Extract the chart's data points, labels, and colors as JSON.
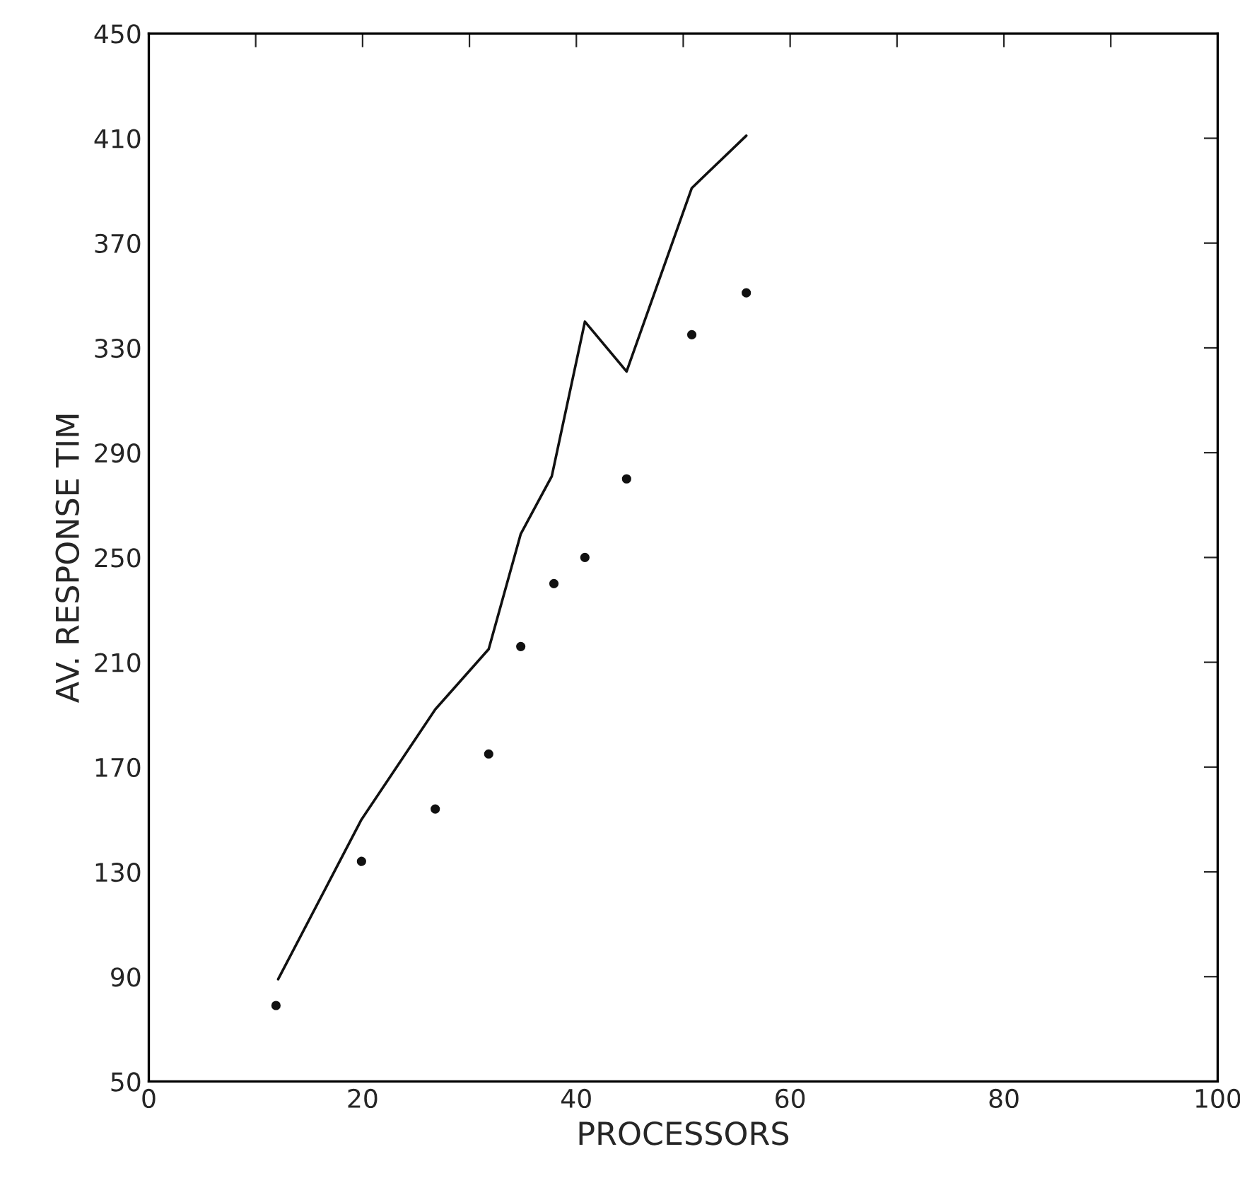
{
  "chart_data": {
    "type": "line",
    "xlabel": "PROCESSORS",
    "ylabel": "AV. RESPONSE TIM",
    "xlim": [
      0,
      100
    ],
    "ylim": [
      50,
      450
    ],
    "xticks": [
      0,
      {
        "value": 10,
        "label": null
      },
      20,
      {
        "value": 30,
        "label": null
      },
      40,
      {
        "value": 50,
        "label": null
      },
      60,
      {
        "value": 70,
        "label": null
      },
      80,
      {
        "value": 90,
        "label": null
      },
      100
    ],
    "yticks": [
      50,
      90,
      130,
      170,
      210,
      250,
      290,
      330,
      370,
      410,
      450
    ],
    "grid": false,
    "series": [
      {
        "color": "#111111",
        "marker": "none",
        "line_style": "solid",
        "x": [
          12.1,
          19.9,
          26.8,
          31.8,
          34.8,
          37.7,
          40.8,
          44.7,
          50.8,
          55.9
        ],
        "values": [
          89,
          150,
          192,
          215,
          259,
          281,
          340,
          321,
          391,
          411
        ]
      },
      {
        "type": "scatter",
        "color": "#111111",
        "marker": "circle",
        "x": [
          11.9,
          19.9,
          26.8,
          31.8,
          34.8,
          37.9,
          40.8,
          44.7,
          50.8,
          55.9
        ],
        "values": [
          79,
          134,
          154,
          175,
          216,
          240,
          250,
          280,
          335,
          351
        ]
      }
    ]
  }
}
